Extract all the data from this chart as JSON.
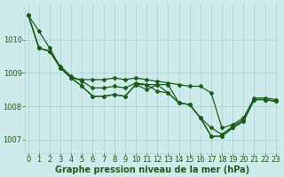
{
  "title": "Graphe pression niveau de la mer (hPa)",
  "background_color": "#ceeaea",
  "grid_color": "#aed4d4",
  "line_color": "#1a5c1a",
  "xlim": [
    -0.3,
    23.3
  ],
  "ylim": [
    1006.6,
    1011.1
  ],
  "yticks": [
    1007,
    1008,
    1009,
    1010
  ],
  "xtick_labels": [
    "0",
    "1",
    "2",
    "3",
    "4",
    "5",
    "6",
    "7",
    "8",
    "9",
    "10",
    "11",
    "12",
    "13",
    "14",
    "15",
    "16",
    "17",
    "18",
    "19",
    "20",
    "21",
    "22",
    "23"
  ],
  "series": [
    [
      1010.75,
      1010.25,
      1009.75,
      1009.15,
      1008.85,
      1008.8,
      1008.8,
      1008.8,
      1008.85,
      1008.8,
      1008.85,
      1008.8,
      1008.75,
      1008.7,
      1008.65,
      1008.6,
      1008.6,
      1008.4,
      1007.35,
      1007.45,
      1007.65,
      1008.25,
      1008.25,
      1008.2
    ],
    [
      1010.75,
      1009.75,
      1009.65,
      1009.2,
      1008.9,
      1008.75,
      1008.55,
      1008.55,
      1008.6,
      1008.55,
      1008.7,
      1008.65,
      1008.45,
      1008.4,
      1008.1,
      1008.05,
      1007.65,
      1007.1,
      1007.1,
      1007.35,
      1007.55,
      1008.2,
      1008.2,
      1008.15
    ],
    [
      1010.75,
      1009.75,
      1009.65,
      1009.15,
      1008.85,
      1008.6,
      1008.3,
      1008.3,
      1008.35,
      1008.3,
      1008.65,
      1008.5,
      1008.65,
      1008.4,
      1008.1,
      1008.05,
      1007.65,
      1007.1,
      1007.1,
      1007.35,
      1007.55,
      1008.2,
      1008.2,
      1008.15
    ],
    [
      1010.75,
      1009.75,
      1009.65,
      1009.15,
      1008.85,
      1008.6,
      1008.3,
      1008.3,
      1008.35,
      1008.3,
      1008.65,
      1008.65,
      1008.65,
      1008.65,
      1008.1,
      1008.05,
      1007.65,
      1007.35,
      1007.15,
      1007.4,
      1007.6,
      1008.2,
      1008.2,
      1008.15
    ]
  ],
  "figsize": [
    3.2,
    2.0
  ],
  "dpi": 100,
  "tick_fontsize": 6,
  "xlabel_fontsize": 7,
  "linewidth": 0.9,
  "markersize": 2.0
}
